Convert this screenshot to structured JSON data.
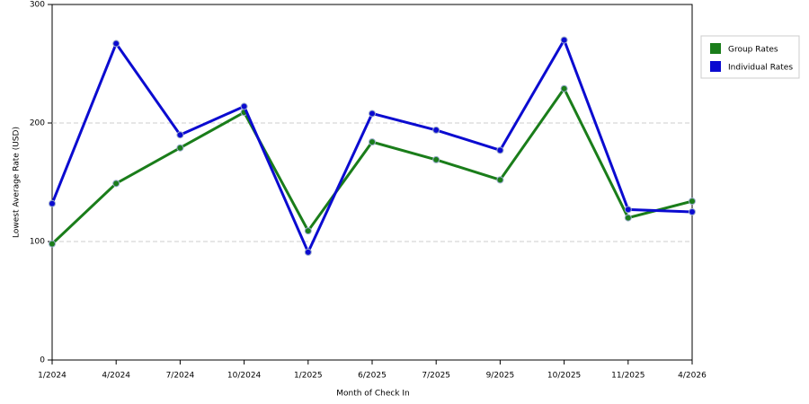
{
  "chart_data": {
    "type": "line",
    "x_label": "Month of Check In",
    "y_label": "Lowest Average Rate (USD)",
    "categories": [
      "1/2024",
      "4/2024",
      "7/2024",
      "10/2024",
      "1/2025",
      "6/2025",
      "7/2025",
      "9/2025",
      "10/2025",
      "11/2025",
      "4/2026"
    ],
    "series": [
      {
        "name": "Group Rates",
        "color": "#1a7d1a",
        "values": [
          98,
          149,
          179,
          209,
          109,
          184,
          169,
          152,
          229,
          120,
          134
        ]
      },
      {
        "name": "Individual Rates",
        "color": "#0b0bd0",
        "values": [
          132,
          267,
          190,
          214,
          91,
          208,
          194,
          177,
          270,
          127,
          125
        ]
      }
    ],
    "ylim": [
      0,
      300
    ],
    "yticks": [
      0,
      100,
      200,
      300
    ],
    "grid": true,
    "legend": "right"
  }
}
